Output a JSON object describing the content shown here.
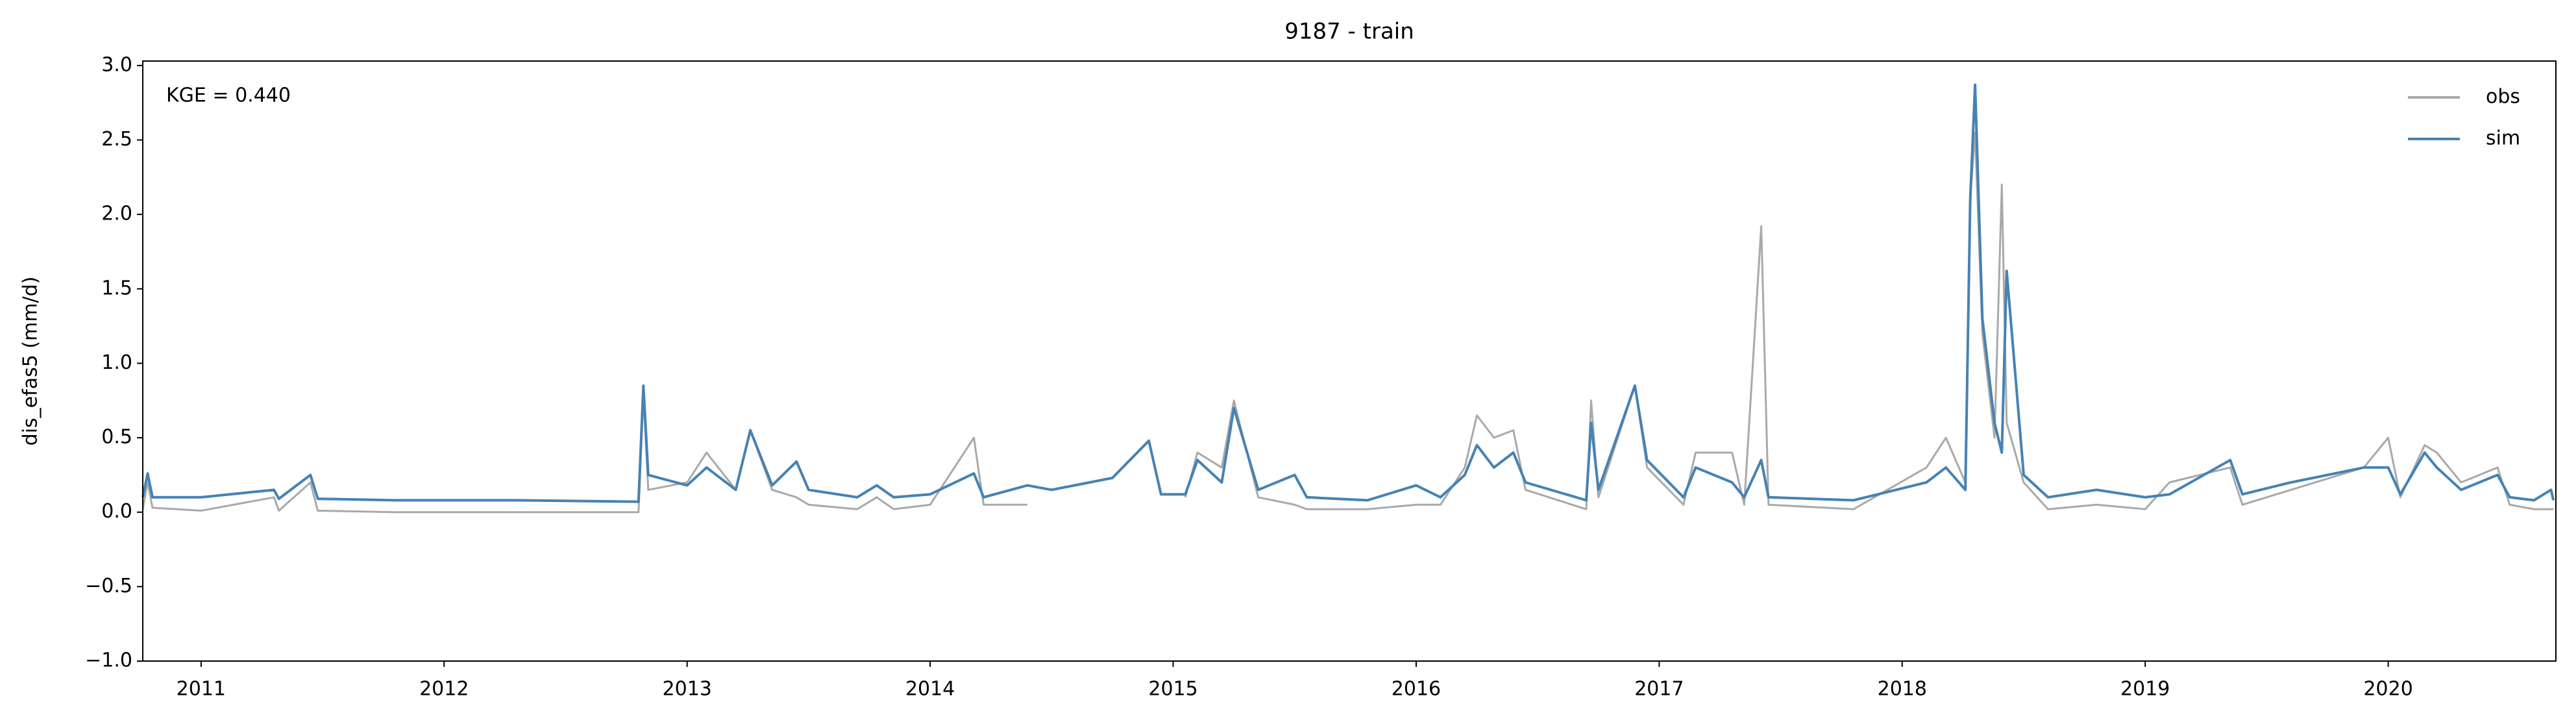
{
  "chart_data": {
    "type": "line",
    "title": "9187 - train",
    "ylabel": "dis_efas5 (mm/d)",
    "annotation": "KGE = 0.440",
    "legend": "upper right",
    "x": [
      2010.76,
      2010.78,
      2010.8,
      2011.0,
      2011.3,
      2011.32,
      2011.45,
      2011.48,
      2011.8,
      2012.3,
      2012.8,
      2012.82,
      2012.84,
      2013.0,
      2013.08,
      2013.2,
      2013.26,
      2013.35,
      2013.45,
      2013.5,
      2013.7,
      2013.78,
      2013.85,
      2014.0,
      2014.18,
      2014.22,
      2014.4,
      2014.5,
      2014.75,
      2014.9,
      2014.95,
      2015.05,
      2015.1,
      2015.2,
      2015.25,
      2015.35,
      2015.5,
      2015.55,
      2015.8,
      2016.0,
      2016.1,
      2016.2,
      2016.25,
      2016.32,
      2016.4,
      2016.45,
      2016.7,
      2016.72,
      2016.75,
      2016.9,
      2016.95,
      2017.1,
      2017.15,
      2017.3,
      2017.35,
      2017.42,
      2017.45,
      2017.8,
      2018.1,
      2018.18,
      2018.26,
      2018.28,
      2018.3,
      2018.33,
      2018.38,
      2018.41,
      2018.43,
      2018.5,
      2018.6,
      2018.8,
      2019.0,
      2019.1,
      2019.35,
      2019.4,
      2019.6,
      2019.9,
      2020.0,
      2020.05,
      2020.15,
      2020.2,
      2020.3,
      2020.45,
      2020.5,
      2020.6,
      2020.67,
      2020.68
    ],
    "series": [
      {
        "name": "obs",
        "color": "#a9a9a9",
        "values": [
          0.02,
          0.2,
          0.03,
          0.01,
          0.1,
          0.01,
          0.2,
          0.01,
          0.0,
          0.0,
          0.0,
          0.8,
          0.15,
          0.2,
          0.4,
          0.15,
          0.55,
          0.15,
          0.1,
          0.05,
          0.02,
          0.1,
          0.02,
          0.05,
          0.5,
          0.05,
          0.05,
          null,
          null,
          null,
          null,
          0.1,
          0.4,
          0.3,
          0.75,
          0.1,
          0.05,
          0.02,
          0.02,
          0.05,
          0.05,
          0.3,
          0.65,
          0.5,
          0.55,
          0.15,
          0.02,
          0.75,
          0.1,
          0.85,
          0.3,
          0.05,
          0.4,
          0.4,
          0.05,
          1.92,
          0.05,
          0.02,
          0.3,
          0.5,
          0.2,
          2.1,
          2.55,
          1.2,
          0.5,
          2.2,
          0.6,
          0.2,
          0.02,
          0.05,
          0.02,
          0.2,
          0.3,
          0.05,
          0.15,
          0.3,
          0.5,
          0.1,
          0.45,
          0.4,
          0.2,
          0.3,
          0.05,
          0.02,
          0.02,
          0.02
        ]
      },
      {
        "name": "sim",
        "color": "#4682b4",
        "values": [
          0.1,
          0.26,
          0.1,
          0.1,
          0.15,
          0.09,
          0.25,
          0.09,
          0.08,
          0.08,
          0.07,
          0.85,
          0.25,
          0.18,
          0.3,
          0.15,
          0.55,
          0.18,
          0.34,
          0.15,
          0.1,
          0.18,
          0.1,
          0.12,
          0.26,
          0.1,
          0.18,
          0.15,
          0.23,
          0.48,
          0.12,
          0.12,
          0.35,
          0.2,
          0.7,
          0.15,
          0.25,
          0.1,
          0.08,
          0.18,
          0.1,
          0.25,
          0.45,
          0.3,
          0.4,
          0.2,
          0.08,
          0.6,
          0.15,
          0.85,
          0.35,
          0.1,
          0.3,
          0.2,
          0.1,
          0.35,
          0.1,
          0.08,
          0.2,
          0.3,
          0.15,
          2.1,
          2.87,
          1.3,
          0.6,
          0.4,
          1.62,
          0.25,
          0.1,
          0.15,
          0.1,
          0.12,
          0.35,
          0.12,
          0.2,
          0.3,
          0.3,
          0.12,
          0.4,
          0.3,
          0.15,
          0.25,
          0.1,
          0.08,
          0.15,
          0.08
        ]
      }
    ],
    "xlim": [
      2010.76,
      2020.69
    ],
    "xticks": [
      2011,
      2012,
      2013,
      2014,
      2015,
      2016,
      2017,
      2018,
      2019,
      2020
    ],
    "ylim": [
      -1,
      3.03
    ],
    "yticks": [
      {
        "value": -1,
        "label": "−1.0"
      },
      {
        "value": -0.5,
        "label": "−0.5"
      },
      {
        "value": 0,
        "label": "0.0"
      },
      {
        "value": 0.5,
        "label": "0.5"
      },
      {
        "value": 1,
        "label": "1.0"
      },
      {
        "value": 1.5,
        "label": "1.5"
      },
      {
        "value": 2,
        "label": "2.0"
      },
      {
        "value": 2.5,
        "label": "2.5"
      },
      {
        "value": 3,
        "label": "3.0"
      }
    ]
  }
}
